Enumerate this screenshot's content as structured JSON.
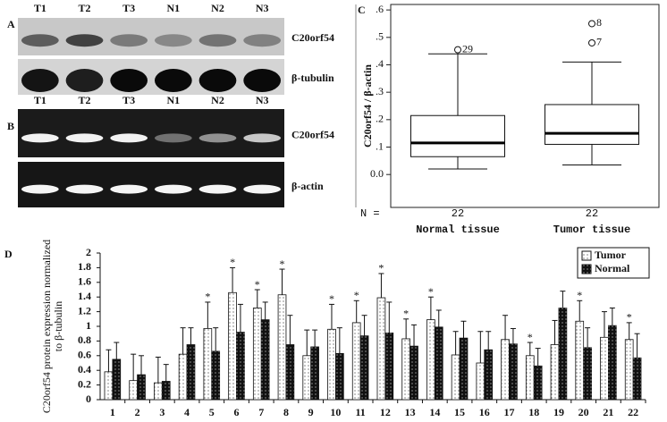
{
  "blots": [
    {
      "panel": "A",
      "lanes": [
        "T1",
        "T2",
        "T3",
        "N1",
        "N2",
        "N3"
      ],
      "rows": [
        "C20orf54",
        "β-tubulin"
      ]
    },
    {
      "panel": "B",
      "lanes": [
        "T1",
        "T2",
        "T3",
        "N1",
        "N2",
        "N3"
      ],
      "rows": [
        "C20orf54",
        "β-actin"
      ]
    }
  ],
  "chart_data": [
    {
      "type": "box",
      "panel": "C",
      "ylabel": "C20orf54 / β-actin",
      "categories": [
        "Normal tissue",
        "Tumor tissue"
      ],
      "n_label": "N =",
      "ylim": [
        -0.12,
        0.62
      ],
      "yticks": [
        {
          "value": 0,
          "label": "0.0"
        },
        {
          "value": 0.1,
          "label": ".1"
        },
        {
          "value": 0.2,
          "label": ".2"
        },
        {
          "value": 0.3,
          "label": ".3"
        },
        {
          "value": 0.4,
          "label": ".4"
        },
        {
          "value": 0.5,
          "label": ".5"
        },
        {
          "value": 0.6,
          "label": ".6"
        }
      ],
      "boxes": [
        {
          "n": 22,
          "whisker_low": 0.02,
          "q1": 0.065,
          "median": 0.115,
          "q3": 0.215,
          "whisker_high": 0.44,
          "outliers": [
            {
              "value": 0.455,
              "label": "29"
            }
          ]
        },
        {
          "n": 22,
          "whisker_low": 0.035,
          "q1": 0.11,
          "median": 0.15,
          "q3": 0.255,
          "whisker_high": 0.41,
          "outliers": [
            {
              "value": 0.55,
              "label": "8"
            },
            {
              "value": 0.48,
              "label": "7"
            }
          ]
        }
      ]
    },
    {
      "type": "bar",
      "panel": "D",
      "ylabel": [
        "C20orf54 protein expression normalized",
        "to β-tubulin"
      ],
      "categories": [
        "1",
        "2",
        "3",
        "4",
        "5",
        "6",
        "7",
        "8",
        "9",
        "10",
        "11",
        "12",
        "13",
        "14",
        "15",
        "16",
        "17",
        "18",
        "19",
        "20",
        "21",
        "22"
      ],
      "ylim": [
        0,
        2
      ],
      "yticks": [
        0,
        0.2,
        0.4,
        0.6,
        0.8,
        1,
        1.2,
        1.4,
        1.6,
        1.8,
        2
      ],
      "legend": "upper right",
      "series": [
        {
          "name": "Tumor",
          "color": "#ffffff",
          "values": [
            0.38,
            0.26,
            0.23,
            0.62,
            0.97,
            1.46,
            1.25,
            1.43,
            0.6,
            0.96,
            1.05,
            1.39,
            0.83,
            1.09,
            0.61,
            0.5,
            0.82,
            0.6,
            0.75,
            1.07,
            0.85,
            0.82
          ],
          "errors": [
            0.3,
            0.36,
            0.35,
            0.36,
            0.36,
            0.34,
            0.25,
            0.35,
            0.35,
            0.34,
            0.3,
            0.33,
            0.27,
            0.31,
            0.32,
            0.43,
            0.33,
            0.18,
            0.33,
            0.28,
            0.35,
            0.23
          ],
          "marker_labels": [
            null,
            null,
            null,
            null,
            "*",
            "*",
            "*",
            "*",
            null,
            "*",
            "*",
            "*",
            "*",
            "*",
            null,
            null,
            null,
            "*",
            null,
            "*",
            null,
            "*"
          ]
        },
        {
          "name": "Normal",
          "color": "#111111",
          "values": [
            0.55,
            0.34,
            0.25,
            0.75,
            0.66,
            0.92,
            1.09,
            0.75,
            0.72,
            0.63,
            0.87,
            0.91,
            0.73,
            0.99,
            0.84,
            0.68,
            0.76,
            0.46,
            1.25,
            0.71,
            1.01,
            0.57
          ],
          "errors": [
            0.23,
            0.26,
            0.23,
            0.23,
            0.32,
            0.38,
            0.24,
            0.4,
            0.23,
            0.35,
            0.28,
            0.42,
            0.29,
            0.23,
            0.23,
            0.25,
            0.21,
            0.24,
            0.23,
            0.27,
            0.24,
            0.33
          ]
        }
      ]
    }
  ]
}
